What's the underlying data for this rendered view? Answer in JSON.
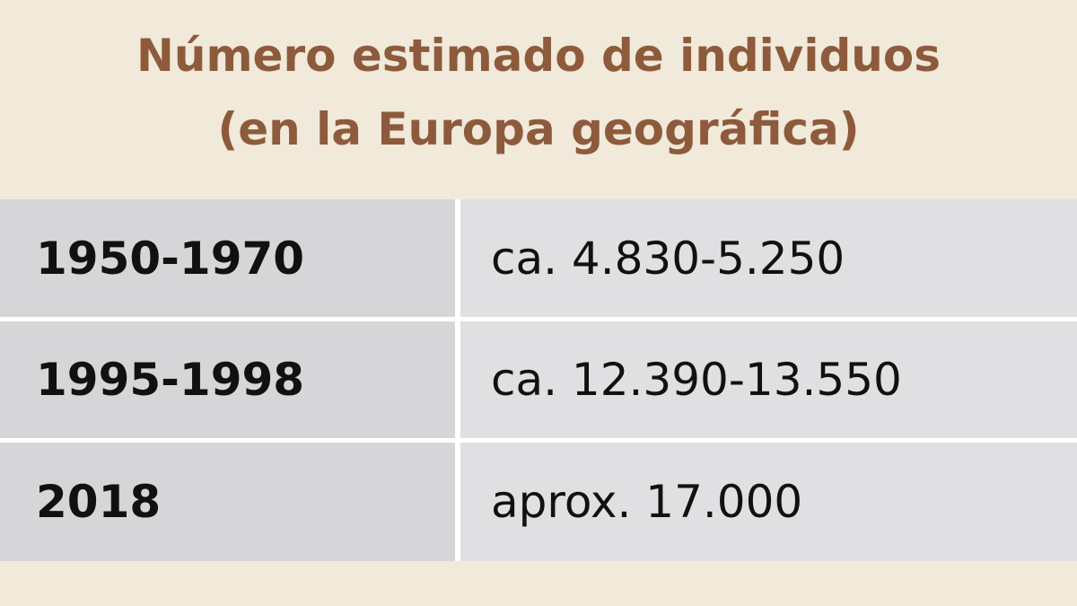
{
  "header": {
    "title_lines": [
      "Número estimado de individuos",
      "(en la Europa geográfica)"
    ]
  },
  "table": {
    "rows": [
      [
        "1950-1970",
        "ca. 4.830-5.250"
      ],
      [
        "1995-1998",
        "ca. 12.390-13.550"
      ],
      [
        "2018",
        "aprox. 17.000"
      ]
    ]
  }
}
